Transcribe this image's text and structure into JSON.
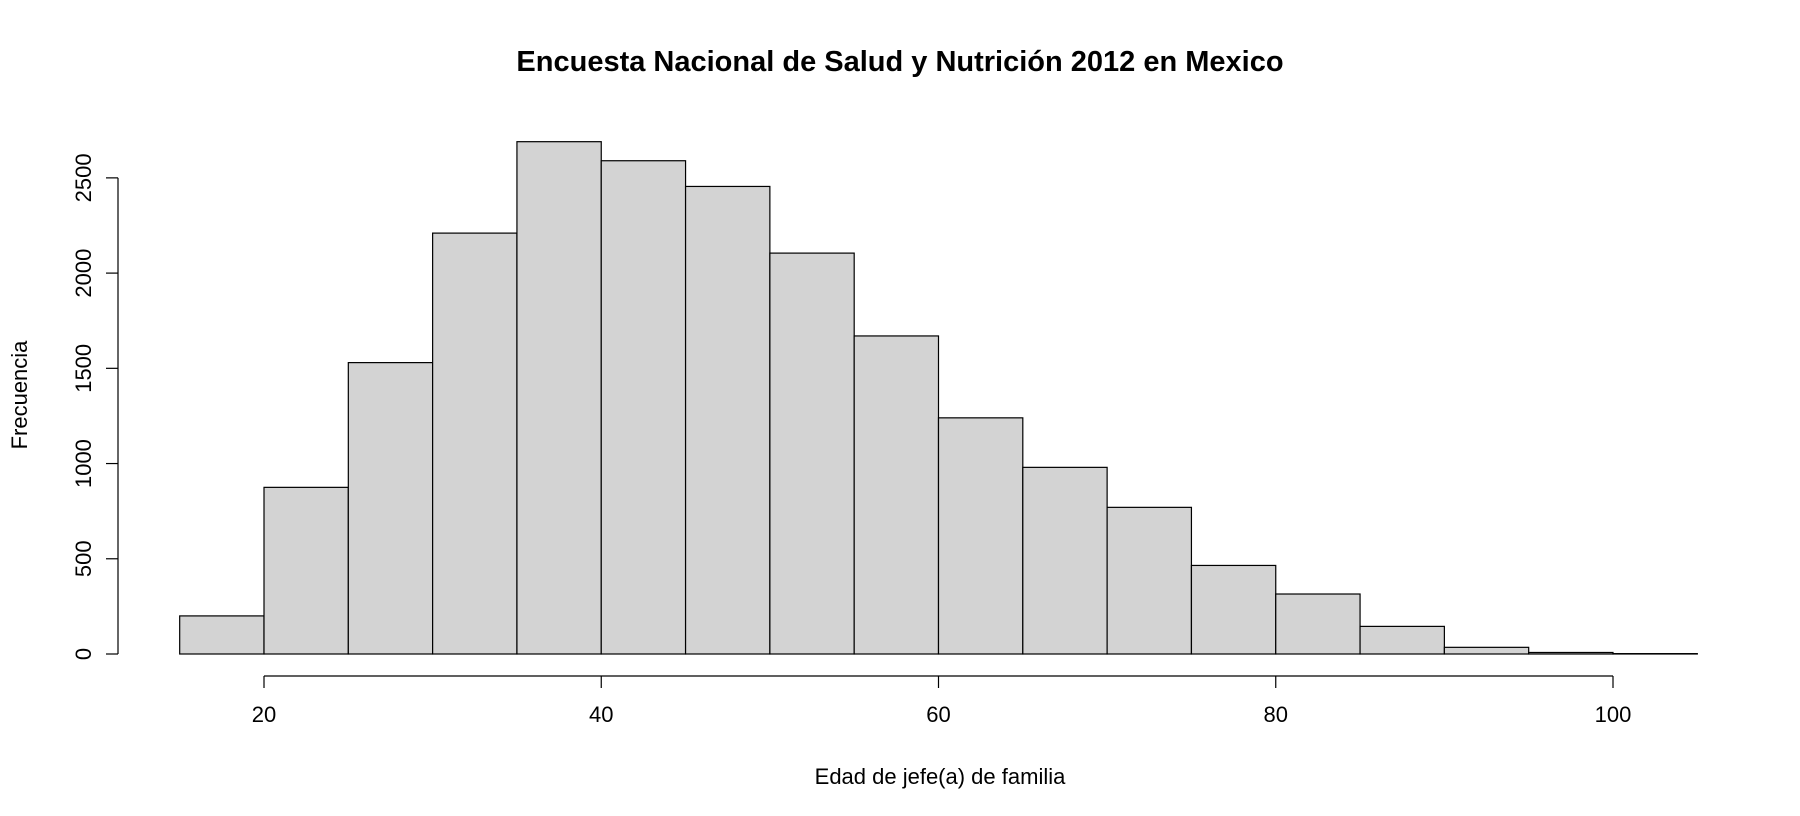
{
  "chart_data": {
    "type": "bar",
    "title": "Encuesta Nacional de Salud y Nutrición 2012 en Mexico",
    "xlabel": "Edad de jefe(a) de familia",
    "ylabel": "Frecuencia",
    "bin_edges": [
      15,
      20,
      25,
      30,
      35,
      40,
      45,
      50,
      55,
      60,
      65,
      70,
      75,
      80,
      85,
      90,
      95,
      100,
      105
    ],
    "values": [
      200,
      875,
      1530,
      2210,
      2690,
      2590,
      2455,
      2105,
      1670,
      1240,
      980,
      770,
      465,
      315,
      145,
      35,
      8,
      2
    ],
    "xlim": [
      15,
      105
    ],
    "ylim": [
      0,
      2700
    ],
    "x_ticks": [
      20,
      40,
      60,
      80,
      100
    ],
    "y_ticks": [
      0,
      500,
      1000,
      1500,
      2000,
      2500
    ],
    "bar_color": "#d3d3d3",
    "grid": false,
    "legend": "none"
  }
}
